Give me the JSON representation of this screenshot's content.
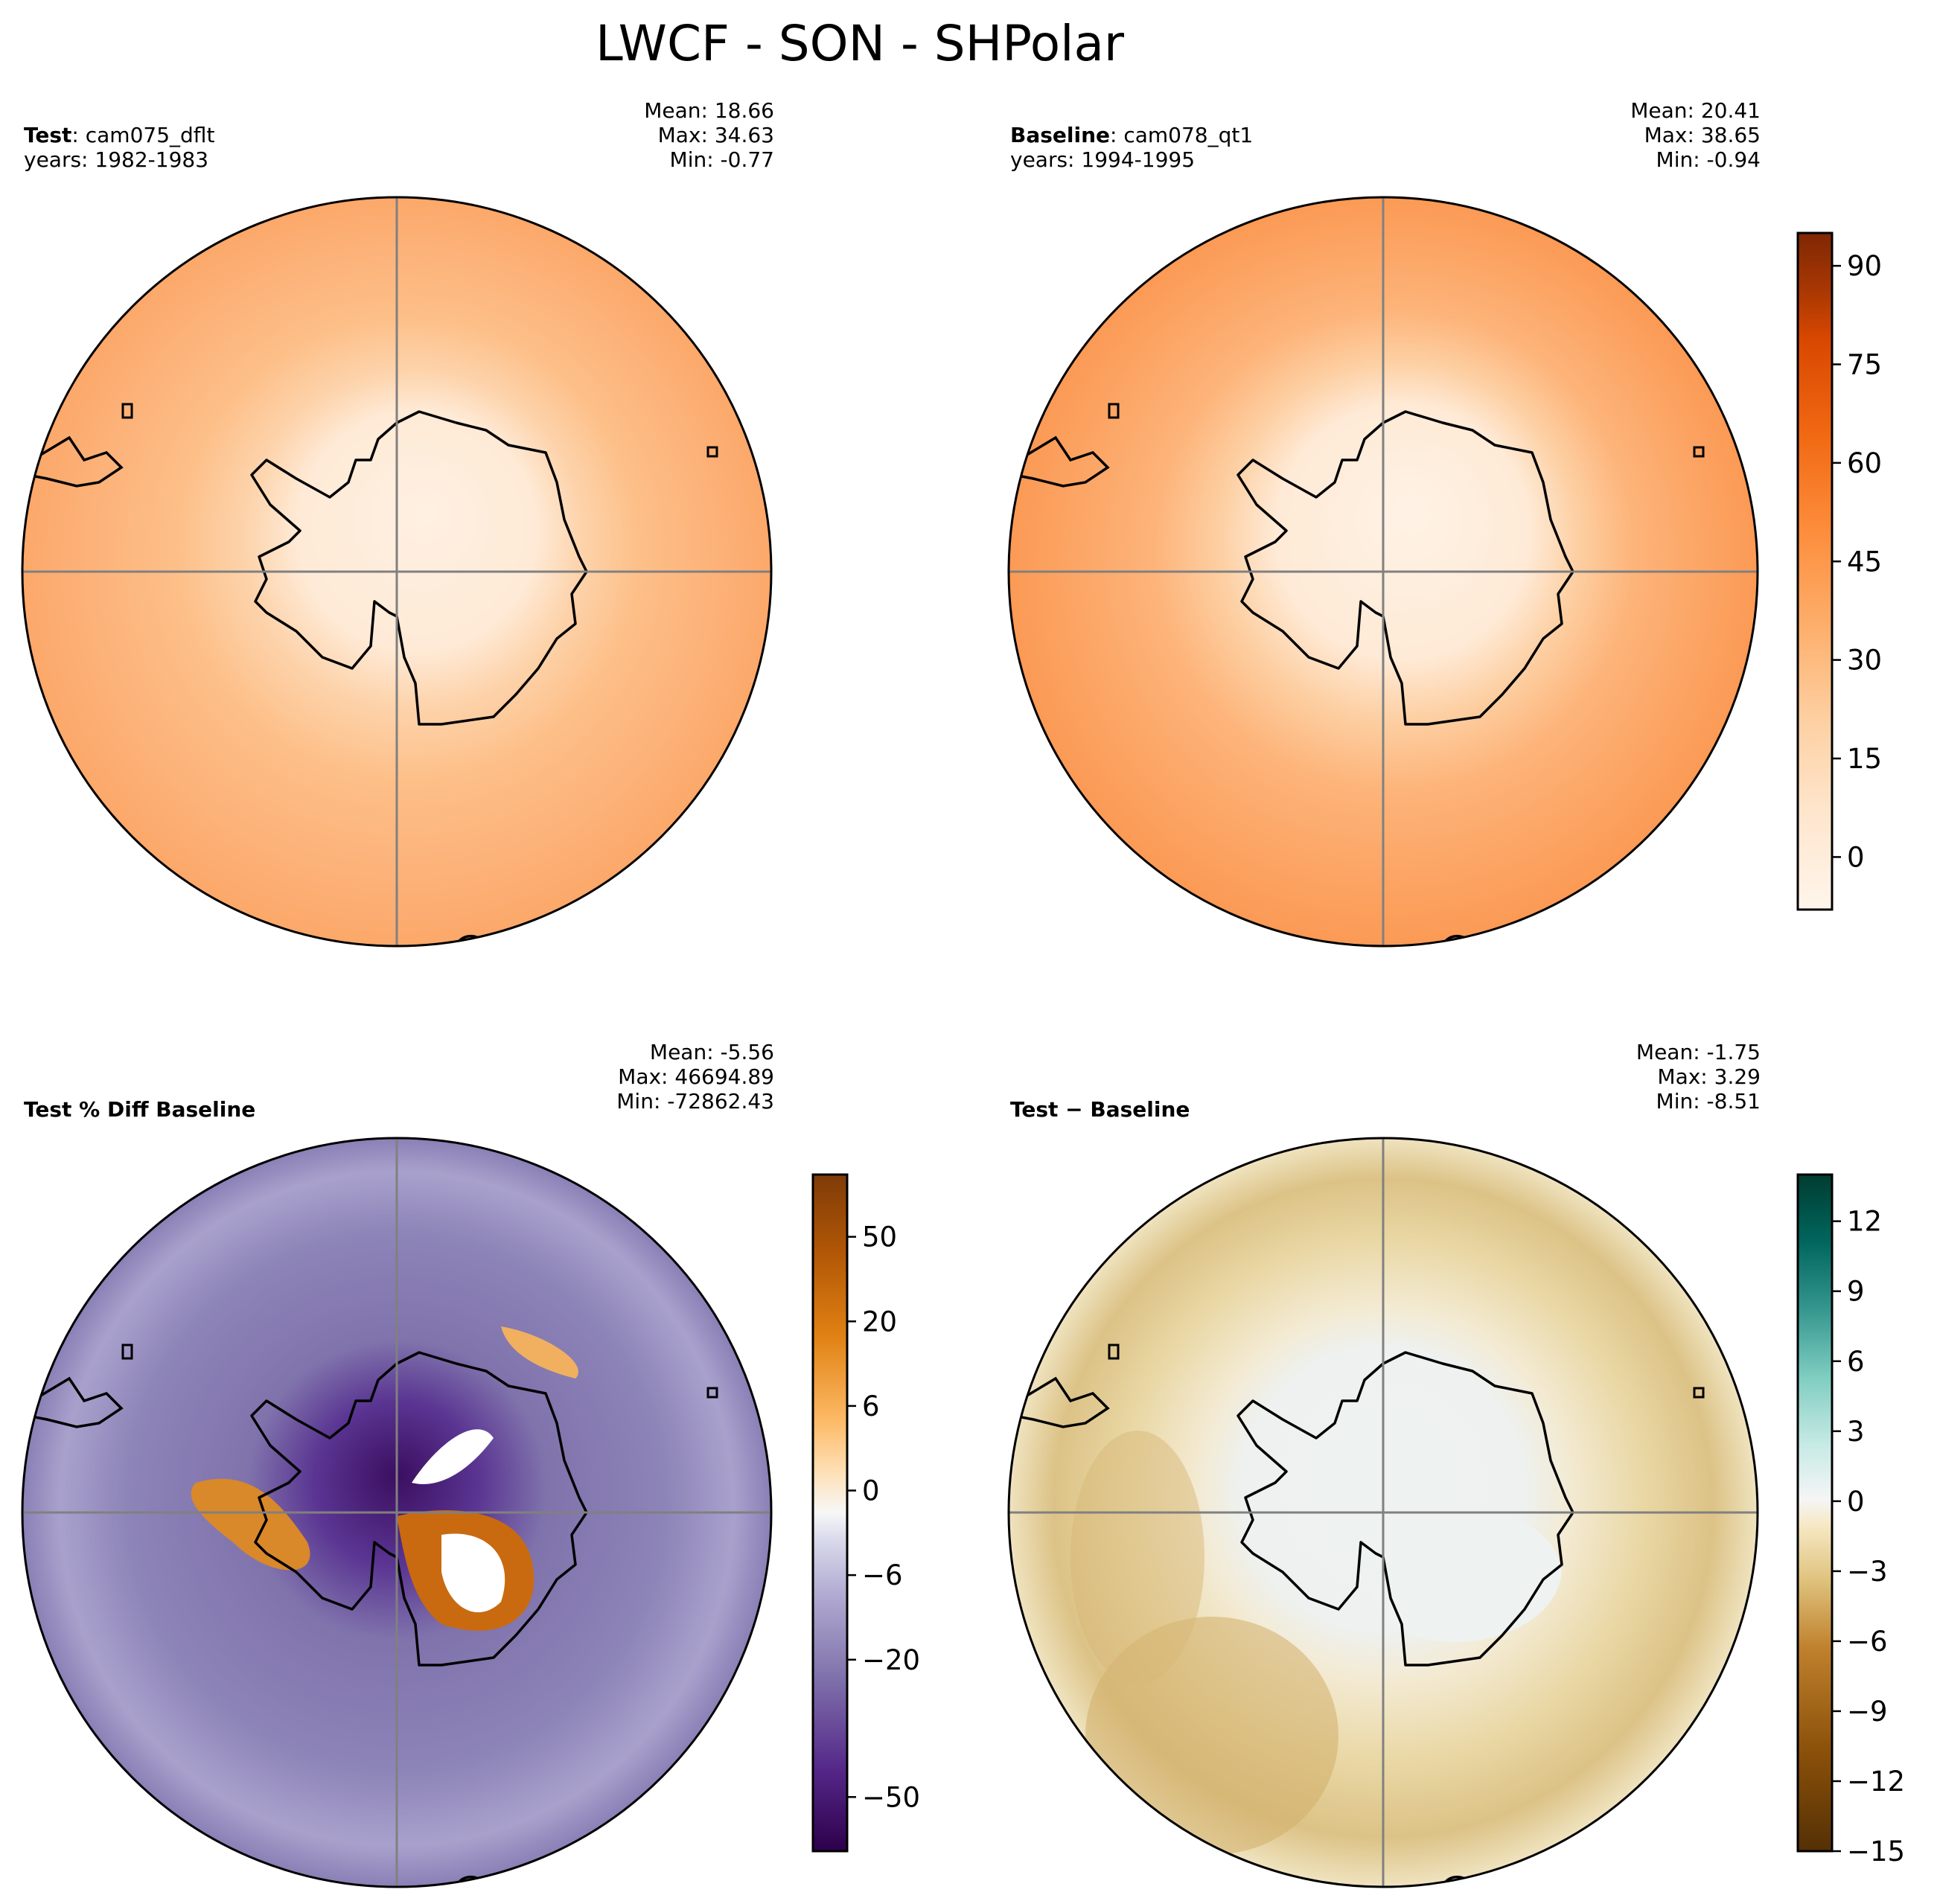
{
  "figure": {
    "title": "LWCF - SON - SHPolar"
  },
  "panels": [
    {
      "id": "test",
      "label_bold": "Test",
      "label_rest": ": cam075_dflt",
      "years": "years: 1982-1983",
      "mean": "Mean: 18.66",
      "max": "Max: 34.63",
      "min": "Min: -0.77"
    },
    {
      "id": "baseline",
      "label_bold": "Baseline",
      "label_rest": ": cam078_qt1",
      "years": "years: 1994-1995",
      "mean": "Mean: 20.41",
      "max": "Max: 38.65",
      "min": "Min: -0.94"
    },
    {
      "id": "pct_diff",
      "label_bold": "Test % Diff Baseline",
      "label_rest": "",
      "years": "",
      "mean": "Mean: -5.56",
      "max": "Max: 46694.89",
      "min": "Min: -72862.43"
    },
    {
      "id": "diff",
      "label_bold": "Test − Baseline",
      "label_rest": "",
      "years": "",
      "mean": "Mean: -1.75",
      "max": "Max:  3.29",
      "min": "Min: -8.51"
    }
  ],
  "chart_data": [
    {
      "type": "heatmap",
      "projection": "south polar stereographic",
      "title": "Test: cam075_dflt",
      "colormap": "Oranges",
      "colorbar_range": [
        -8,
        95
      ],
      "colorbar_ticks": [
        "0",
        "15",
        "30",
        "45",
        "60",
        "75",
        "90"
      ],
      "colorbar_tick_values": [
        0,
        15,
        30,
        45,
        60,
        75,
        90
      ],
      "stats": {
        "mean": 18.66,
        "max": 34.63,
        "min": -0.77
      },
      "colorbar": "shared with baseline panel"
    },
    {
      "type": "heatmap",
      "projection": "south polar stereographic",
      "title": "Baseline: cam078_qt1",
      "colormap": "Oranges",
      "colorbar_range": [
        -8,
        95
      ],
      "colorbar_ticks": [
        "0",
        "15",
        "30",
        "45",
        "60",
        "75",
        "90"
      ],
      "colorbar_tick_values": [
        0,
        15,
        30,
        45,
        60,
        75,
        90
      ],
      "stats": {
        "mean": 20.41,
        "max": 38.65,
        "min": -0.94
      }
    },
    {
      "type": "heatmap",
      "projection": "south polar stereographic",
      "title": "Test % Diff Baseline",
      "colormap": "PuOr_r",
      "colorbar_ticks": [
        "50",
        "20",
        "6",
        "0",
        "−6",
        "−20",
        "−50"
      ],
      "colorbar_tick_values": [
        50,
        20,
        6,
        0,
        -6,
        -20,
        -50
      ],
      "stats": {
        "mean": -5.56,
        "max": 46694.89,
        "min": -72862.43
      }
    },
    {
      "type": "heatmap",
      "projection": "south polar stereographic",
      "title": "Test − Baseline",
      "colormap": "BrBG",
      "colorbar_range": [
        -15,
        14
      ],
      "colorbar_ticks": [
        "12",
        "9",
        "6",
        "3",
        "0",
        "−3",
        "−6",
        "−9",
        "−12",
        "−15"
      ],
      "colorbar_tick_values": [
        12,
        9,
        6,
        3,
        0,
        -3,
        -6,
        -9,
        -12,
        -15
      ],
      "stats": {
        "mean": -1.75,
        "max": 3.29,
        "min": -8.51
      }
    }
  ],
  "colors": {
    "oranges": [
      "#fff5eb",
      "#fee6ce",
      "#fdd0a2",
      "#fdae6b",
      "#fd8d3c",
      "#f16913",
      "#d94801",
      "#a63603",
      "#7f2704"
    ],
    "puor": [
      "#2d004b",
      "#542788",
      "#8073ac",
      "#b2abd2",
      "#d8daeb",
      "#f7f7f7",
      "#fee0b6",
      "#fdb863",
      "#e08214",
      "#b35806",
      "#7f3b08"
    ],
    "brbg": [
      "#543005",
      "#8c510a",
      "#bf812d",
      "#dfc27d",
      "#f6e8c3",
      "#f5f5f5",
      "#c7eae5",
      "#80cdc1",
      "#35978f",
      "#01665e",
      "#003c30"
    ]
  }
}
